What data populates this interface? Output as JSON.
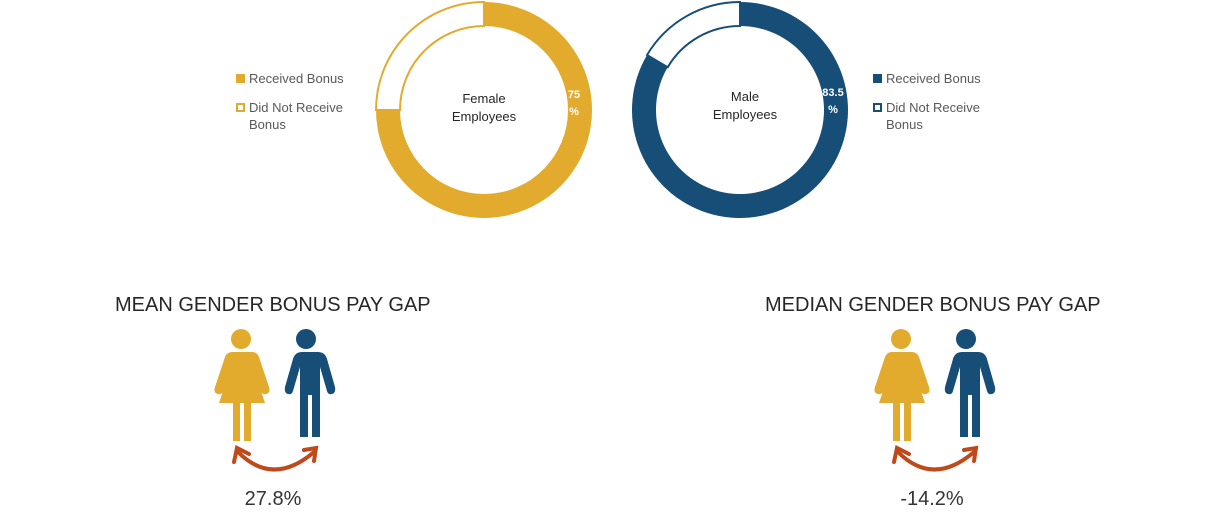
{
  "colors": {
    "female": "#E3AB2E",
    "male": "#174E78",
    "arrow": "#C0491B"
  },
  "chart_data": [
    {
      "type": "pie",
      "title": "Female Employees",
      "series": [
        {
          "name": "Received Bonus",
          "value": 75
        },
        {
          "name": "Did Not Receive Bonus",
          "value": 25
        }
      ],
      "data_label": "75",
      "data_label_unit": "%",
      "legend": [
        "Received Bonus",
        "Did Not Receive Bonus"
      ],
      "legend_placement": "left"
    },
    {
      "type": "pie",
      "title": "Male Employees",
      "series": [
        {
          "name": "Received Bonus",
          "value": 83.5
        },
        {
          "name": "Did Not Receive Bonus",
          "value": 16.5
        }
      ],
      "data_label": "83.5",
      "data_label_unit": "%",
      "legend": [
        "Received Bonus",
        "Did Not Receive Bonus"
      ],
      "legend_placement": "right"
    }
  ],
  "female": {
    "title_line1": "Female",
    "title_line2": "Employees",
    "legend_received": "Received Bonus",
    "legend_not_line1": "Did Not Receive",
    "legend_not_line2": "Bonus"
  },
  "male": {
    "title_line1": "Male",
    "title_line2": "Employees",
    "legend_received": "Received Bonus",
    "legend_not_line1": "Did Not Receive",
    "legend_not_line2": "Bonus"
  },
  "mean": {
    "title": "MEAN GENDER BONUS PAY GAP",
    "value": "27.8%"
  },
  "median": {
    "title": "MEDIAN GENDER BONUS PAY GAP",
    "value": "-14.2%"
  }
}
